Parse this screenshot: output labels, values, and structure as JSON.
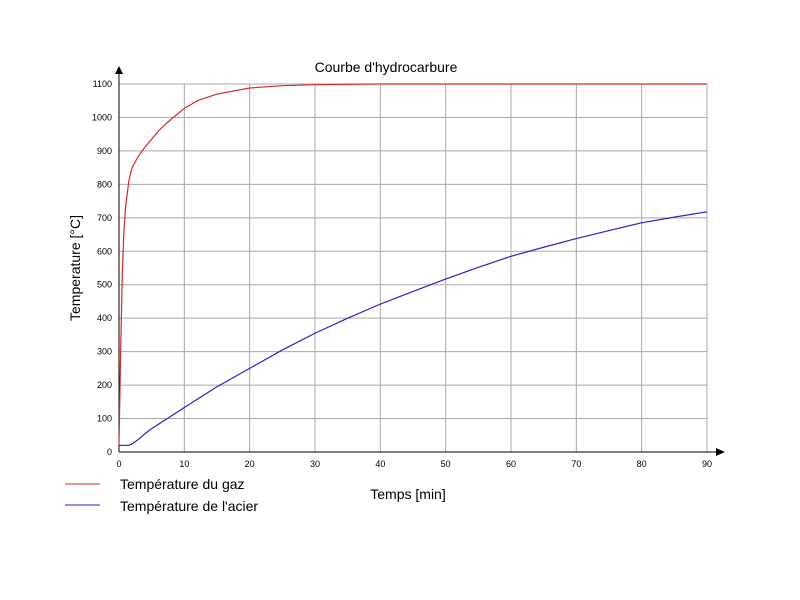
{
  "chart_data": {
    "type": "line",
    "title": "Courbe d'hydrocarbure",
    "xlabel": "Temps [min]",
    "ylabel": "Temperature [°C]",
    "xlim": [
      0,
      90
    ],
    "ylim": [
      0,
      1100
    ],
    "x_ticks": [
      "0",
      "10",
      "20",
      "30",
      "40",
      "50",
      "60",
      "70",
      "80",
      "90"
    ],
    "y_ticks": [
      "0",
      "100",
      "200",
      "300",
      "400",
      "500",
      "600",
      "700",
      "800",
      "900",
      "1000",
      "1100"
    ],
    "grid": true,
    "legend_position": "bottom-left",
    "series": [
      {
        "name": "Température du gaz",
        "color": "#d42a2a",
        "x": [
          0,
          0.25,
          0.5,
          0.75,
          1,
          1.5,
          2,
          3,
          4,
          5,
          6,
          7,
          8,
          10,
          12,
          15,
          20,
          25,
          30,
          40,
          50,
          60,
          70,
          80,
          90
        ],
        "y": [
          20,
          300,
          530,
          660,
          730,
          810,
          850,
          885,
          912,
          935,
          958,
          978,
          995,
          1027,
          1050,
          1070,
          1088,
          1095,
          1098,
          1100,
          1100,
          1100,
          1100,
          1100,
          1100
        ]
      },
      {
        "name": "Température de l'acier",
        "color": "#2424c8",
        "x": [
          0,
          1,
          1.5,
          2,
          3,
          4,
          5,
          7,
          10,
          15,
          20,
          25,
          30,
          35,
          40,
          45,
          50,
          55,
          60,
          65,
          70,
          75,
          80,
          85,
          90
        ],
        "y": [
          20,
          20,
          20,
          24,
          38,
          55,
          70,
          95,
          133,
          195,
          250,
          305,
          355,
          400,
          442,
          480,
          517,
          552,
          585,
          612,
          638,
          662,
          685,
          702,
          718
        ]
      }
    ]
  }
}
